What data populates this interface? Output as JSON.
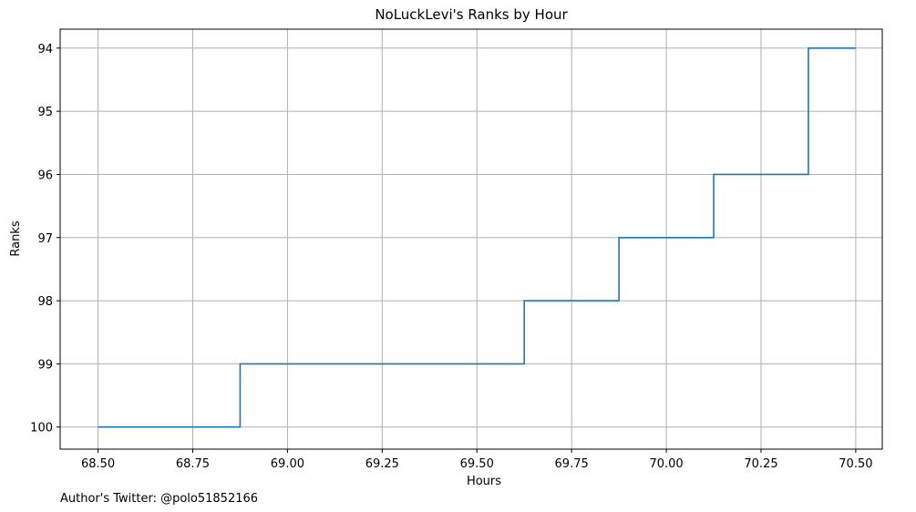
{
  "chart_data": {
    "type": "line",
    "drawstyle": "steps-post",
    "title": "NoLuckLevi's Ranks by Hour",
    "xlabel": "Hours",
    "ylabel": "Ranks",
    "xlim": [
      68.4,
      70.57
    ],
    "ylim": [
      100.35,
      93.7
    ],
    "y_inverted": true,
    "xticks": [
      "68.50",
      "68.75",
      "69.00",
      "69.25",
      "69.50",
      "69.75",
      "70.00",
      "70.25",
      "70.50"
    ],
    "yticks": [
      "94",
      "95",
      "96",
      "97",
      "98",
      "99",
      "100"
    ],
    "grid": true,
    "series": [
      {
        "color": "#1f77b4",
        "x": [
          68.5,
          68.875,
          69.625,
          69.875,
          70.125,
          70.375,
          70.5
        ],
        "y": [
          100,
          99,
          98,
          97,
          96,
          94,
          94
        ]
      }
    ]
  },
  "footer": {
    "text": "Author's Twitter: @polo51852166"
  }
}
